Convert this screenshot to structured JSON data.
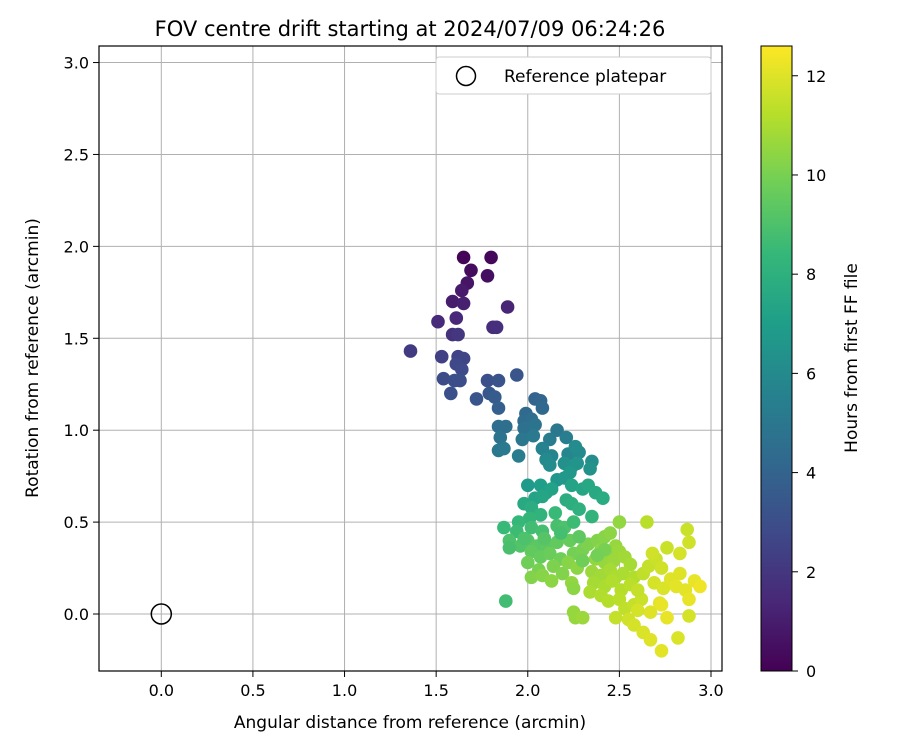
{
  "chart_data": {
    "type": "scatter",
    "title": "FOV centre drift starting at 2024/07/09 06:24:26",
    "xlabel": "Angular distance from reference (arcmin)",
    "ylabel": "Rotation from reference (arcmin)",
    "xlim": [
      -0.34,
      3.06
    ],
    "ylim": [
      -0.31,
      3.09
    ],
    "x_ticks": [
      "0.0",
      "0.5",
      "1.0",
      "1.5",
      "2.0",
      "2.5",
      "3.0"
    ],
    "y_ticks": [
      "0.0",
      "0.5",
      "1.0",
      "1.5",
      "2.0",
      "2.5",
      "3.0"
    ],
    "grid": true,
    "legend": {
      "position": "top-right",
      "entries": [
        "Reference platepar"
      ]
    },
    "reference_point": {
      "x": 0.0,
      "y": 0.0,
      "marker": "open-circle"
    },
    "colorbar": {
      "label": "Hours from first FF file",
      "colormap": "viridis",
      "range": [
        0,
        12.6
      ],
      "ticks": [
        "0",
        "2",
        "4",
        "6",
        "8",
        "10",
        "12"
      ]
    },
    "series": [
      {
        "color_by": "hours",
        "points": [
          {
            "x": 1.65,
            "y": 1.94,
            "c": 0.1
          },
          {
            "x": 1.8,
            "y": 1.94,
            "c": 0.2
          },
          {
            "x": 1.69,
            "y": 1.87,
            "c": 0.4
          },
          {
            "x": 1.78,
            "y": 1.84,
            "c": 0.5
          },
          {
            "x": 1.67,
            "y": 1.8,
            "c": 0.7
          },
          {
            "x": 1.64,
            "y": 1.76,
            "c": 0.9
          },
          {
            "x": 1.59,
            "y": 1.7,
            "c": 1.0
          },
          {
            "x": 1.65,
            "y": 1.69,
            "c": 1.1
          },
          {
            "x": 1.89,
            "y": 1.67,
            "c": 1.3
          },
          {
            "x": 1.61,
            "y": 1.61,
            "c": 1.4
          },
          {
            "x": 1.51,
            "y": 1.59,
            "c": 1.5
          },
          {
            "x": 1.81,
            "y": 1.56,
            "c": 1.6
          },
          {
            "x": 1.83,
            "y": 1.56,
            "c": 1.7
          },
          {
            "x": 1.59,
            "y": 1.52,
            "c": 1.8
          },
          {
            "x": 1.62,
            "y": 1.52,
            "c": 2.0
          },
          {
            "x": 1.36,
            "y": 1.43,
            "c": 2.2
          },
          {
            "x": 1.53,
            "y": 1.4,
            "c": 2.4
          },
          {
            "x": 1.62,
            "y": 1.4,
            "c": 2.5
          },
          {
            "x": 1.65,
            "y": 1.39,
            "c": 2.6
          },
          {
            "x": 1.61,
            "y": 1.36,
            "c": 2.7
          },
          {
            "x": 1.64,
            "y": 1.33,
            "c": 2.8
          },
          {
            "x": 1.54,
            "y": 1.28,
            "c": 2.9
          },
          {
            "x": 1.6,
            "y": 1.27,
            "c": 3.0
          },
          {
            "x": 1.63,
            "y": 1.27,
            "c": 3.0
          },
          {
            "x": 1.78,
            "y": 1.27,
            "c": 3.1
          },
          {
            "x": 1.84,
            "y": 1.27,
            "c": 3.2
          },
          {
            "x": 1.94,
            "y": 1.3,
            "c": 3.3
          },
          {
            "x": 1.58,
            "y": 1.2,
            "c": 3.1
          },
          {
            "x": 1.72,
            "y": 1.17,
            "c": 3.3
          },
          {
            "x": 1.79,
            "y": 1.2,
            "c": 3.4
          },
          {
            "x": 1.82,
            "y": 1.18,
            "c": 3.6
          },
          {
            "x": 1.84,
            "y": 1.12,
            "c": 3.8
          },
          {
            "x": 2.04,
            "y": 1.17,
            "c": 4.0
          },
          {
            "x": 2.07,
            "y": 1.16,
            "c": 4.1
          },
          {
            "x": 2.08,
            "y": 1.12,
            "c": 4.2
          },
          {
            "x": 1.99,
            "y": 1.09,
            "c": 4.3
          },
          {
            "x": 1.98,
            "y": 1.05,
            "c": 4.4
          },
          {
            "x": 2.02,
            "y": 1.06,
            "c": 4.5
          },
          {
            "x": 1.84,
            "y": 1.02,
            "c": 4.5
          },
          {
            "x": 1.88,
            "y": 1.02,
            "c": 4.6
          },
          {
            "x": 1.98,
            "y": 1.01,
            "c": 4.7
          },
          {
            "x": 2.04,
            "y": 1.03,
            "c": 4.8
          },
          {
            "x": 2.16,
            "y": 1.0,
            "c": 5.0
          },
          {
            "x": 1.85,
            "y": 0.96,
            "c": 4.8
          },
          {
            "x": 1.97,
            "y": 0.95,
            "c": 5.0
          },
          {
            "x": 2.03,
            "y": 0.97,
            "c": 5.1
          },
          {
            "x": 2.12,
            "y": 0.95,
            "c": 5.3
          },
          {
            "x": 2.21,
            "y": 0.96,
            "c": 5.4
          },
          {
            "x": 1.84,
            "y": 0.89,
            "c": 5.0
          },
          {
            "x": 1.87,
            "y": 0.9,
            "c": 5.1
          },
          {
            "x": 1.95,
            "y": 0.86,
            "c": 5.3
          },
          {
            "x": 2.08,
            "y": 0.9,
            "c": 5.6
          },
          {
            "x": 2.13,
            "y": 0.86,
            "c": 5.7
          },
          {
            "x": 2.22,
            "y": 0.87,
            "c": 5.8
          },
          {
            "x": 2.28,
            "y": 0.88,
            "c": 6.0
          },
          {
            "x": 2.26,
            "y": 0.91,
            "c": 6.1
          },
          {
            "x": 2.35,
            "y": 0.83,
            "c": 6.2
          },
          {
            "x": 2.34,
            "y": 0.79,
            "c": 6.4
          },
          {
            "x": 2.1,
            "y": 0.84,
            "c": 6.0
          },
          {
            "x": 2.12,
            "y": 0.81,
            "c": 6.1
          },
          {
            "x": 2.2,
            "y": 0.82,
            "c": 6.3
          },
          {
            "x": 2.24,
            "y": 0.8,
            "c": 6.4
          },
          {
            "x": 2.27,
            "y": 0.82,
            "c": 6.5
          },
          {
            "x": 2.23,
            "y": 0.77,
            "c": 6.7
          },
          {
            "x": 2.16,
            "y": 0.73,
            "c": 6.6
          },
          {
            "x": 2.2,
            "y": 0.74,
            "c": 6.7
          },
          {
            "x": 2.0,
            "y": 0.7,
            "c": 6.8
          },
          {
            "x": 2.07,
            "y": 0.7,
            "c": 7.0
          },
          {
            "x": 2.1,
            "y": 0.66,
            "c": 7.1
          },
          {
            "x": 2.13,
            "y": 0.68,
            "c": 7.2
          },
          {
            "x": 2.24,
            "y": 0.7,
            "c": 7.3
          },
          {
            "x": 2.3,
            "y": 0.68,
            "c": 7.4
          },
          {
            "x": 2.33,
            "y": 0.7,
            "c": 7.5
          },
          {
            "x": 2.37,
            "y": 0.66,
            "c": 7.6
          },
          {
            "x": 2.41,
            "y": 0.63,
            "c": 7.7
          },
          {
            "x": 2.04,
            "y": 0.63,
            "c": 7.3
          },
          {
            "x": 2.08,
            "y": 0.64,
            "c": 7.4
          },
          {
            "x": 1.98,
            "y": 0.6,
            "c": 7.6
          },
          {
            "x": 2.02,
            "y": 0.58,
            "c": 7.8
          },
          {
            "x": 2.21,
            "y": 0.62,
            "c": 7.8
          },
          {
            "x": 2.24,
            "y": 0.6,
            "c": 7.9
          },
          {
            "x": 2.28,
            "y": 0.57,
            "c": 8.0
          },
          {
            "x": 2.35,
            "y": 0.53,
            "c": 8.2
          },
          {
            "x": 2.07,
            "y": 0.54,
            "c": 8.2
          },
          {
            "x": 2.01,
            "y": 0.52,
            "c": 8.3
          },
          {
            "x": 1.95,
            "y": 0.5,
            "c": 8.4
          },
          {
            "x": 1.87,
            "y": 0.47,
            "c": 8.5
          },
          {
            "x": 1.94,
            "y": 0.45,
            "c": 8.6
          },
          {
            "x": 2.02,
            "y": 0.47,
            "c": 8.7
          },
          {
            "x": 2.08,
            "y": 0.45,
            "c": 8.8
          },
          {
            "x": 2.16,
            "y": 0.48,
            "c": 8.9
          },
          {
            "x": 2.2,
            "y": 0.47,
            "c": 9.0
          },
          {
            "x": 1.9,
            "y": 0.4,
            "c": 9.0
          },
          {
            "x": 1.96,
            "y": 0.37,
            "c": 9.1
          },
          {
            "x": 2.0,
            "y": 0.4,
            "c": 9.2
          },
          {
            "x": 2.05,
            "y": 0.37,
            "c": 9.3
          },
          {
            "x": 2.11,
            "y": 0.36,
            "c": 9.4
          },
          {
            "x": 2.16,
            "y": 0.39,
            "c": 9.5
          },
          {
            "x": 2.23,
            "y": 0.4,
            "c": 9.6
          },
          {
            "x": 2.02,
            "y": 0.34,
            "c": 9.5
          },
          {
            "x": 2.07,
            "y": 0.31,
            "c": 9.6
          },
          {
            "x": 2.12,
            "y": 0.33,
            "c": 9.7
          },
          {
            "x": 2.18,
            "y": 0.3,
            "c": 9.8
          },
          {
            "x": 2.25,
            "y": 0.33,
            "c": 9.9
          },
          {
            "x": 2.3,
            "y": 0.35,
            "c": 10.0
          },
          {
            "x": 2.0,
            "y": 0.28,
            "c": 9.8
          },
          {
            "x": 2.06,
            "y": 0.24,
            "c": 10.0
          },
          {
            "x": 2.14,
            "y": 0.26,
            "c": 10.1
          },
          {
            "x": 2.19,
            "y": 0.22,
            "c": 10.2
          },
          {
            "x": 2.22,
            "y": 0.28,
            "c": 10.3
          },
          {
            "x": 2.27,
            "y": 0.25,
            "c": 10.4
          },
          {
            "x": 2.02,
            "y": 0.2,
            "c": 10.2
          },
          {
            "x": 2.08,
            "y": 0.21,
            "c": 10.3
          },
          {
            "x": 2.13,
            "y": 0.18,
            "c": 10.4
          },
          {
            "x": 2.24,
            "y": 0.17,
            "c": 10.5
          },
          {
            "x": 1.88,
            "y": 0.07,
            "c": 8.7
          },
          {
            "x": 2.25,
            "y": 0.14,
            "c": 10.4
          },
          {
            "x": 2.25,
            "y": 0.01,
            "c": 10.6
          },
          {
            "x": 2.26,
            "y": -0.02,
            "c": 10.6
          },
          {
            "x": 2.3,
            "y": -0.02,
            "c": 10.7
          },
          {
            "x": 2.33,
            "y": 0.38,
            "c": 10.1
          },
          {
            "x": 2.38,
            "y": 0.4,
            "c": 10.2
          },
          {
            "x": 2.42,
            "y": 0.42,
            "c": 10.3
          },
          {
            "x": 2.45,
            "y": 0.44,
            "c": 10.4
          },
          {
            "x": 2.5,
            "y": 0.5,
            "c": 10.5
          },
          {
            "x": 2.4,
            "y": 0.35,
            "c": 10.4
          },
          {
            "x": 2.45,
            "y": 0.33,
            "c": 10.5
          },
          {
            "x": 2.48,
            "y": 0.37,
            "c": 10.6
          },
          {
            "x": 2.5,
            "y": 0.34,
            "c": 10.7
          },
          {
            "x": 2.37,
            "y": 0.3,
            "c": 10.5
          },
          {
            "x": 2.42,
            "y": 0.28,
            "c": 10.6
          },
          {
            "x": 2.47,
            "y": 0.29,
            "c": 10.7
          },
          {
            "x": 2.53,
            "y": 0.31,
            "c": 10.8
          },
          {
            "x": 2.56,
            "y": 0.27,
            "c": 10.9
          },
          {
            "x": 2.35,
            "y": 0.23,
            "c": 10.7
          },
          {
            "x": 2.4,
            "y": 0.21,
            "c": 10.8
          },
          {
            "x": 2.45,
            "y": 0.24,
            "c": 10.9
          },
          {
            "x": 2.48,
            "y": 0.2,
            "c": 11.0
          },
          {
            "x": 2.52,
            "y": 0.22,
            "c": 11.0
          },
          {
            "x": 2.58,
            "y": 0.2,
            "c": 11.1
          },
          {
            "x": 2.36,
            "y": 0.17,
            "c": 10.9
          },
          {
            "x": 2.42,
            "y": 0.15,
            "c": 11.0
          },
          {
            "x": 2.46,
            "y": 0.18,
            "c": 11.1
          },
          {
            "x": 2.51,
            "y": 0.13,
            "c": 11.2
          },
          {
            "x": 2.56,
            "y": 0.16,
            "c": 11.3
          },
          {
            "x": 2.34,
            "y": 0.12,
            "c": 11.0
          },
          {
            "x": 2.4,
            "y": 0.1,
            "c": 11.1
          },
          {
            "x": 2.44,
            "y": 0.07,
            "c": 11.2
          },
          {
            "x": 2.5,
            "y": 0.08,
            "c": 11.3
          },
          {
            "x": 2.53,
            "y": 0.03,
            "c": 11.4
          },
          {
            "x": 2.58,
            "y": 0.05,
            "c": 11.5
          },
          {
            "x": 2.62,
            "y": 0.08,
            "c": 11.6
          },
          {
            "x": 2.6,
            "y": 0.13,
            "c": 11.5
          },
          {
            "x": 2.63,
            "y": 0.22,
            "c": 11.4
          },
          {
            "x": 2.66,
            "y": 0.26,
            "c": 11.5
          },
          {
            "x": 2.7,
            "y": 0.3,
            "c": 11.6
          },
          {
            "x": 2.73,
            "y": 0.25,
            "c": 11.7
          },
          {
            "x": 2.76,
            "y": 0.36,
            "c": 11.6
          },
          {
            "x": 2.68,
            "y": 0.33,
            "c": 11.7
          },
          {
            "x": 2.65,
            "y": 0.5,
            "c": 11.3
          },
          {
            "x": 2.87,
            "y": 0.46,
            "c": 11.6
          },
          {
            "x": 2.88,
            "y": 0.39,
            "c": 11.7
          },
          {
            "x": 2.83,
            "y": 0.33,
            "c": 11.8
          },
          {
            "x": 2.69,
            "y": 0.17,
            "c": 11.8
          },
          {
            "x": 2.74,
            "y": 0.14,
            "c": 11.9
          },
          {
            "x": 2.78,
            "y": 0.19,
            "c": 12.0
          },
          {
            "x": 2.83,
            "y": 0.22,
            "c": 12.0
          },
          {
            "x": 2.81,
            "y": 0.15,
            "c": 12.1
          },
          {
            "x": 2.86,
            "y": 0.13,
            "c": 12.1
          },
          {
            "x": 2.91,
            "y": 0.18,
            "c": 12.2
          },
          {
            "x": 2.94,
            "y": 0.15,
            "c": 12.3
          },
          {
            "x": 2.88,
            "y": 0.08,
            "c": 12.2
          },
          {
            "x": 2.72,
            "y": 0.06,
            "c": 12.1
          },
          {
            "x": 2.67,
            "y": 0.01,
            "c": 12.0
          },
          {
            "x": 2.73,
            "y": 0.05,
            "c": 12.2
          },
          {
            "x": 2.76,
            "y": -0.02,
            "c": 12.2
          },
          {
            "x": 2.6,
            "y": 0.02,
            "c": 11.8
          },
          {
            "x": 2.55,
            "y": -0.03,
            "c": 11.7
          },
          {
            "x": 2.58,
            "y": -0.06,
            "c": 11.8
          },
          {
            "x": 2.63,
            "y": -0.1,
            "c": 11.9
          },
          {
            "x": 2.67,
            "y": -0.14,
            "c": 12.0
          },
          {
            "x": 2.73,
            "y": -0.2,
            "c": 12.1
          },
          {
            "x": 2.82,
            "y": -0.13,
            "c": 11.9
          },
          {
            "x": 2.88,
            "y": -0.01,
            "c": 11.8
          },
          {
            "x": 2.48,
            "y": -0.02,
            "c": 11.5
          },
          {
            "x": 2.42,
            "y": 0.35,
            "c": 10.0
          },
          {
            "x": 2.38,
            "y": 0.32,
            "c": 9.9
          },
          {
            "x": 2.3,
            "y": 0.29,
            "c": 9.8
          },
          {
            "x": 2.15,
            "y": 0.55,
            "c": 8.5
          },
          {
            "x": 2.25,
            "y": 0.5,
            "c": 8.6
          },
          {
            "x": 2.18,
            "y": 0.44,
            "c": 8.8
          },
          {
            "x": 1.9,
            "y": 0.36,
            "c": 8.9
          },
          {
            "x": 1.98,
            "y": 0.41,
            "c": 9.0
          },
          {
            "x": 2.09,
            "y": 0.41,
            "c": 9.2
          },
          {
            "x": 2.28,
            "y": 0.42,
            "c": 9.4
          }
        ]
      }
    ]
  }
}
